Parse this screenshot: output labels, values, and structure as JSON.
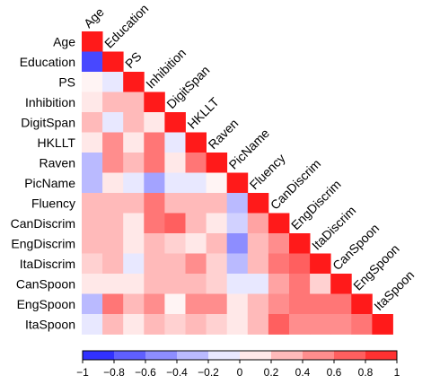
{
  "chart_data": {
    "type": "heatmap",
    "variables": [
      "Age",
      "Education",
      "PS",
      "Inhibition",
      "DigitSpan",
      "HKLLT",
      "Raven",
      "PicName",
      "Fluency",
      "CanDiscrim",
      "EngDiscrim",
      "ItaDiscrim",
      "CanSpoon",
      "EngSpoon",
      "ItaSpoon"
    ],
    "matrix": [
      [
        1
      ],
      [
        -0.8,
        1
      ],
      [
        0.05,
        -0.1,
        1
      ],
      [
        0.1,
        0.3,
        0.3,
        1
      ],
      [
        0.3,
        -0.1,
        0.3,
        0.1,
        1
      ],
      [
        0.1,
        0.5,
        0.1,
        0.6,
        -0.1,
        1
      ],
      [
        -0.3,
        0.5,
        0.3,
        0.6,
        0.1,
        0.6,
        1
      ],
      [
        -0.3,
        0.1,
        -0.1,
        -0.4,
        -0.1,
        -0.1,
        0.05,
        1
      ],
      [
        0.3,
        0.3,
        0.3,
        0.6,
        0.3,
        0.3,
        0.3,
        -0.3,
        1
      ],
      [
        0.3,
        0.3,
        0.1,
        0.6,
        0.7,
        0.3,
        0.1,
        -0.2,
        0.4,
        1
      ],
      [
        0.3,
        0.3,
        0.1,
        0.3,
        0.2,
        0.1,
        0.3,
        -0.5,
        0.3,
        0.5,
        1
      ],
      [
        0.2,
        0.3,
        -0.1,
        0.3,
        0.3,
        0.5,
        0.2,
        -0.3,
        0.3,
        0.6,
        0.7,
        1
      ],
      [
        0.1,
        0.1,
        0.1,
        0.3,
        0.3,
        0.3,
        0.2,
        -0.1,
        -0.1,
        0.4,
        0.6,
        0.2,
        1
      ],
      [
        -0.3,
        0.6,
        0.3,
        0.5,
        0.05,
        0.5,
        0.5,
        0.1,
        0.3,
        0.5,
        0.6,
        0.6,
        0.6,
        1
      ],
      [
        -0.1,
        0.3,
        0.1,
        0.3,
        0.2,
        0.3,
        0.2,
        0.1,
        0.3,
        0.7,
        0.5,
        0.5,
        0.5,
        0.6,
        1
      ]
    ],
    "colorbar": {
      "range": [
        -1,
        1
      ],
      "ticks": [
        "−1",
        "−0.8",
        "−0.6",
        "−0.4",
        "−0.2",
        "0",
        "0.2",
        "0.4",
        "0.6",
        "0.8",
        "1"
      ],
      "negative_color": "#1a1aff",
      "neutral_color": "#ffffff",
      "positive_color": "#ff1a1a"
    }
  }
}
